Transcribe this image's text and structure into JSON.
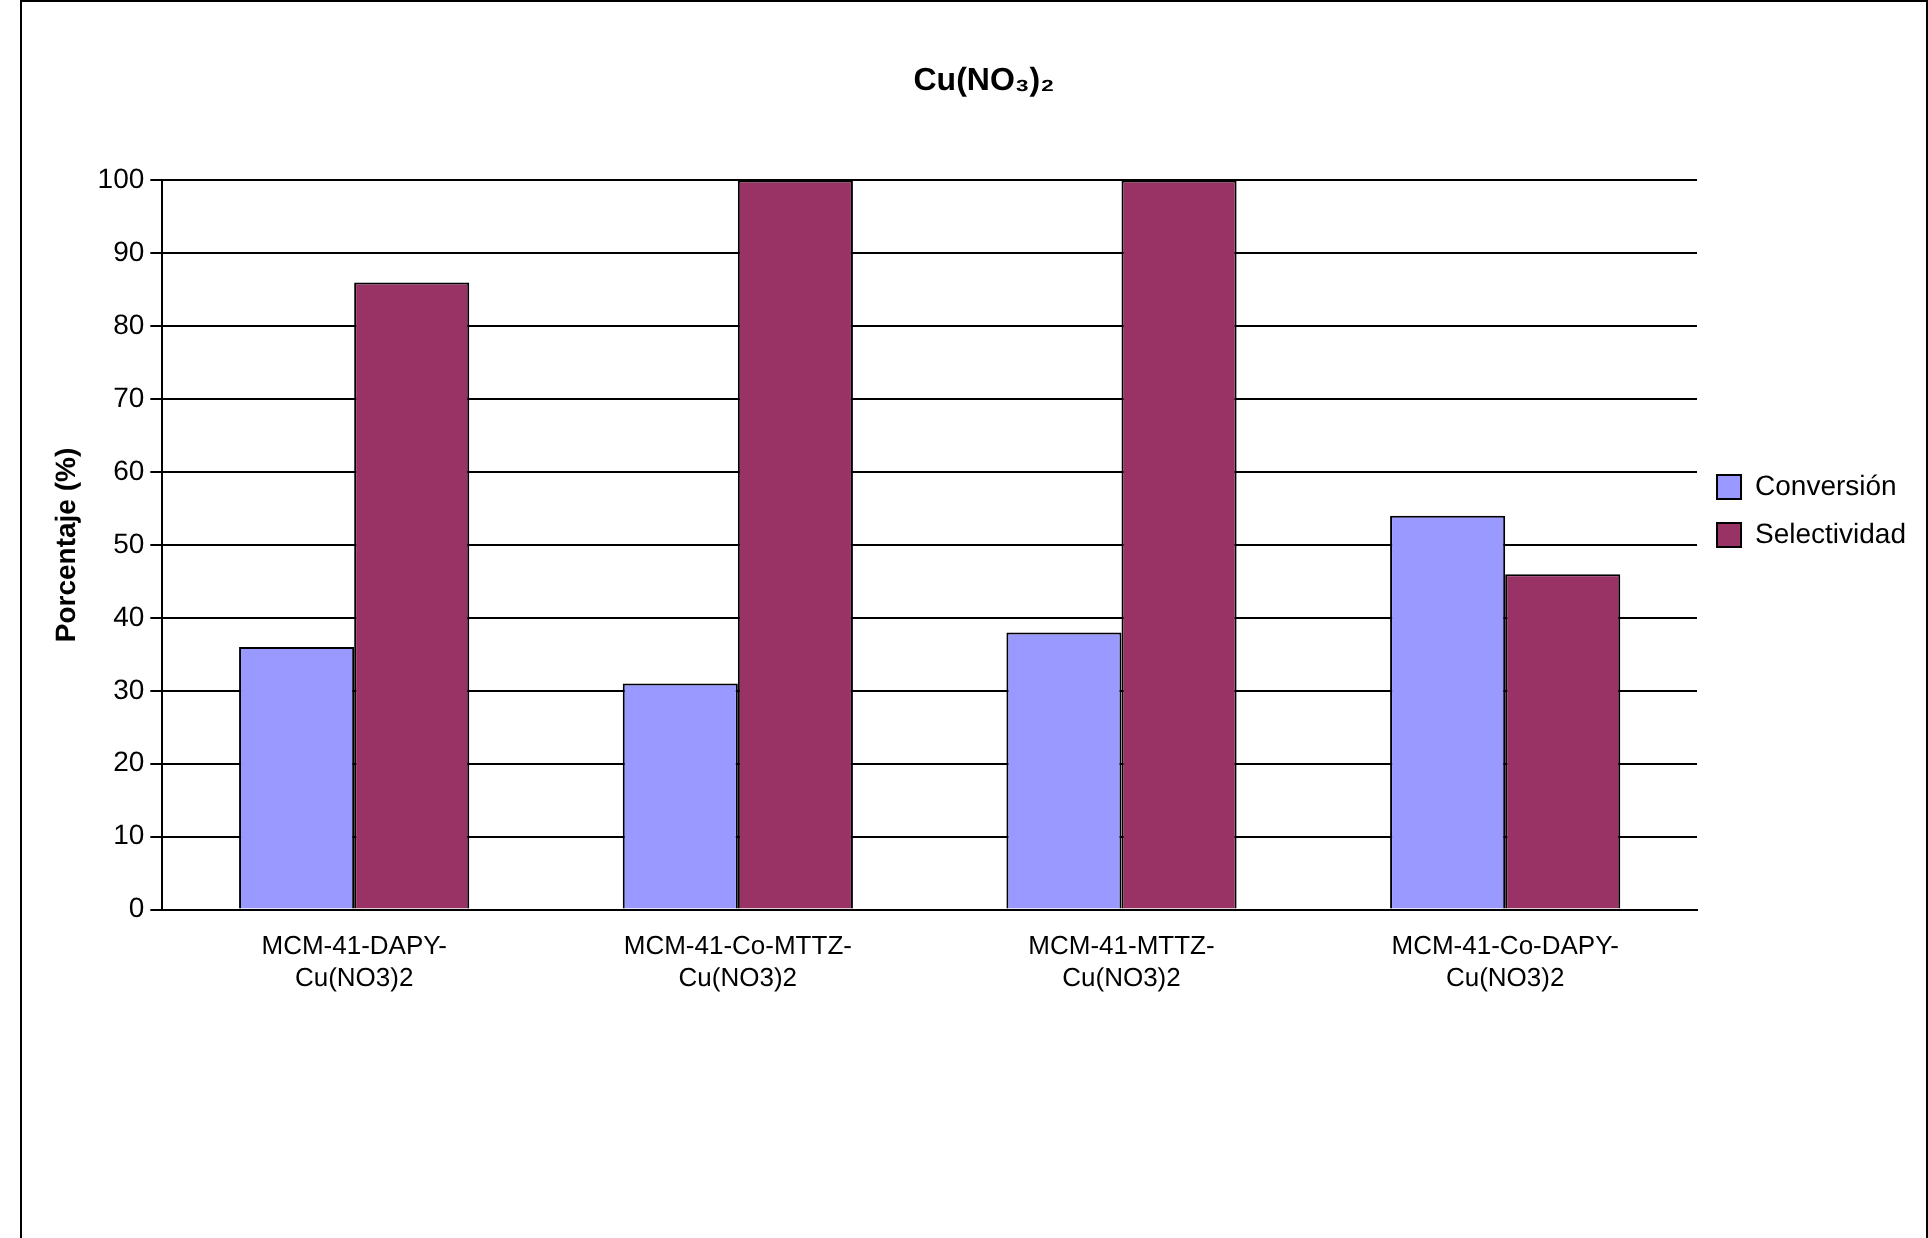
{
  "chart_data": {
    "type": "bar",
    "title": "Cu(NO₃)₂",
    "ylabel": "Porcentaje (%)",
    "categories": [
      "MCM-41-DAPY-Cu(NO3)2",
      "MCM-41-Co-MTTZ-Cu(NO3)2",
      "MCM-41-MTTZ-Cu(NO3)2",
      "MCM-41-Co-DAPY-Cu(NO3)2"
    ],
    "series": [
      {
        "name": "Conversión",
        "color": "#9999ff",
        "values": [
          36,
          31,
          38,
          54
        ]
      },
      {
        "name": "Selectividad",
        "color": "#993366",
        "values": [
          86,
          100,
          100,
          46
        ]
      }
    ],
    "ylim": [
      0,
      100
    ],
    "yticks": [
      0,
      10,
      20,
      30,
      40,
      50,
      60,
      70,
      80,
      90,
      100
    ],
    "grid": "y",
    "legend": "right"
  }
}
